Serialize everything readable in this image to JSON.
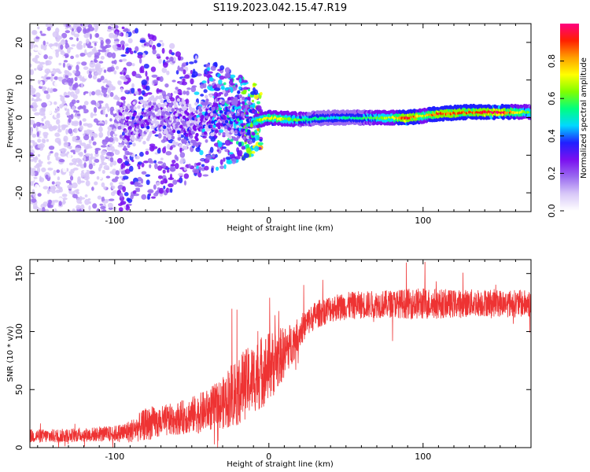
{
  "title": "S119.2023.042.15.47.R19",
  "chart_data": [
    {
      "type": "heatmap",
      "xlabel": "Height of straight line (km)",
      "ylabel": "Frequency (Hz)",
      "xlim": [
        -155,
        170
      ],
      "ylim": [
        -25,
        25
      ],
      "xticks": [
        -100,
        0,
        100
      ],
      "xtick_labels": [
        "-100",
        "0",
        "100"
      ],
      "yticks": [
        -20,
        -10,
        0,
        10,
        20
      ],
      "ytick_labels": [
        "-20",
        "-10",
        "0",
        "10",
        "20"
      ],
      "grid": false,
      "description_points": {
        "x": [
          -150,
          -100,
          -90,
          -75,
          -60,
          -50,
          -40,
          -30,
          -20,
          -10,
          0,
          20,
          40,
          60,
          80,
          90,
          100,
          110,
          130,
          150,
          168
        ],
        "center_freq_hz": [
          0,
          0,
          -2,
          0,
          -1,
          -3,
          0,
          1,
          0,
          -1,
          0,
          -0.5,
          0,
          0,
          0,
          0,
          0.5,
          1,
          1.5,
          1.5,
          1.5
        ],
        "amplitude": [
          0.15,
          0.2,
          0.35,
          0.3,
          0.3,
          0.35,
          0.4,
          0.45,
          0.45,
          0.6,
          0.75,
          0.6,
          0.5,
          0.55,
          0.7,
          0.95,
          0.7,
          0.9,
          0.85,
          0.95,
          0.6
        ]
      }
    },
    {
      "type": "line",
      "xlabel": "Height of straight line (km)",
      "ylabel": "SNR (10 * v/v)",
      "xlim": [
        -155,
        170
      ],
      "ylim": [
        0,
        162
      ],
      "xticks": [
        -100,
        0,
        100
      ],
      "xtick_labels": [
        "-100",
        "0",
        "100"
      ],
      "yticks": [
        0,
        50,
        100,
        150
      ],
      "ytick_labels": [
        "0",
        "50",
        "100",
        "150"
      ],
      "grid": false,
      "series": [
        {
          "color": "#ee3333",
          "x": [
            -155,
            -140,
            -120,
            -100,
            -90,
            -80,
            -70,
            -60,
            -50,
            -40,
            -30,
            -25,
            -20,
            -15,
            -10,
            -5,
            0,
            5,
            10,
            15,
            20,
            25,
            30,
            40,
            50,
            60,
            80,
            100,
            120,
            140,
            160,
            170
          ],
          "mean": [
            10,
            10,
            11,
            12,
            14,
            20,
            22,
            25,
            28,
            32,
            38,
            45,
            50,
            55,
            60,
            65,
            70,
            75,
            82,
            90,
            100,
            108,
            114,
            120,
            122,
            123,
            124,
            124,
            124,
            125,
            124,
            124
          ],
          "spread": [
            6,
            6,
            6,
            7,
            10,
            14,
            14,
            14,
            16,
            18,
            22,
            28,
            32,
            30,
            30,
            32,
            30,
            28,
            22,
            18,
            14,
            12,
            12,
            12,
            12,
            12,
            12,
            14,
            12,
            12,
            12,
            12
          ]
        }
      ]
    }
  ],
  "colorbar": {
    "label": "Normalized spectral amplitude",
    "range": [
      0.0,
      1.0
    ],
    "ticks": [
      0.0,
      0.2,
      0.4,
      0.6,
      0.8
    ],
    "tick_labels": [
      "0.0",
      "0.2",
      "0.4",
      "0.6",
      "0.8"
    ],
    "colors": [
      "#ffffff",
      "#d8c8f8",
      "#9a6af0",
      "#7a10f0",
      "#2020ff",
      "#00d8ff",
      "#00ff80",
      "#80ff00",
      "#ffff00",
      "#ffa000",
      "#ff2000",
      "#ff0080"
    ]
  }
}
